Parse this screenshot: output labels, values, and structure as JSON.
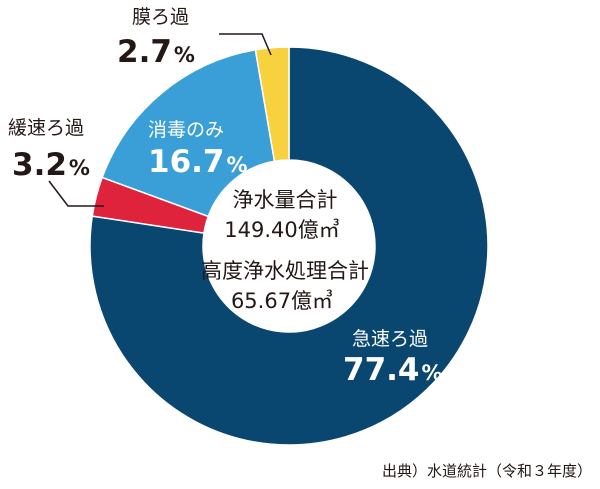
{
  "chart_data": {
    "type": "pie",
    "slices": [
      {
        "label": "急速ろ過",
        "value": 77.4,
        "value_text": "77.4",
        "unit": "%",
        "color": "#0a4770"
      },
      {
        "label": "緩速ろ過",
        "value": 3.2,
        "value_text": "3.2",
        "unit": "%",
        "color": "#e0233d"
      },
      {
        "label": "消毒のみ",
        "value": 16.7,
        "value_text": "16.7",
        "unit": "%",
        "color": "#3a9fd7"
      },
      {
        "label": "膜ろ過",
        "value": 2.7,
        "value_text": "2.7",
        "unit": "%",
        "color": "#f7d23e"
      }
    ],
    "center": {
      "title1": "浄水量合計",
      "value1": "149.40億㎥",
      "title2": "高度浄水処理合計",
      "value2": "65.67億㎥"
    },
    "source": "出典）水道統計（令和３年度）"
  }
}
